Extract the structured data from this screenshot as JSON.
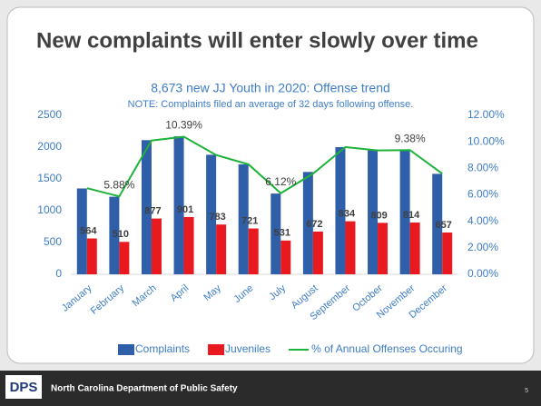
{
  "slide": {
    "title": "New complaints will enter slowly over time",
    "logo": "DPS",
    "footer": "North Carolina Department of Public Safety",
    "page": "5"
  },
  "chart_data": {
    "type": "bar_line",
    "title": "8,673 new JJ Youth in 2020: Offense trend",
    "subtitle": "NOTE: Complaints filed an average of 32 days following offense.",
    "categories": [
      "January",
      "February",
      "March",
      "April",
      "May",
      "June",
      "July",
      "August",
      "September",
      "October",
      "November",
      "December"
    ],
    "series": [
      {
        "name": "Complaints",
        "type": "bar",
        "color": "#2f5fa8",
        "values": [
          1350,
          1220,
          2110,
          2170,
          1880,
          1730,
          1270,
          1610,
          2000,
          1960,
          1960,
          1580
        ]
      },
      {
        "name": "Juveniles",
        "type": "bar",
        "color": "#e8191f",
        "data_labels": true,
        "values": [
          564,
          510,
          877,
          901,
          783,
          721,
          531,
          672,
          834,
          809,
          814,
          657
        ]
      },
      {
        "name": "% of Annual Offenses Occuring",
        "type": "line",
        "axis": "y2",
        "color": "#1db33a",
        "values": [
          6.5,
          5.88,
          10.1,
          10.39,
          9.0,
          8.3,
          6.12,
          7.6,
          9.6,
          9.35,
          9.38,
          7.6
        ],
        "value_labels": [
          null,
          "5.88%",
          null,
          "10.39%",
          null,
          null,
          "6.12%",
          null,
          null,
          null,
          "9.38%",
          null
        ]
      }
    ],
    "ylim": [
      0,
      2500
    ],
    "yticks": [
      0,
      500,
      1000,
      1500,
      2000,
      2500
    ],
    "y2lim": [
      0,
      12
    ],
    "y2ticks": [
      {
        "value": 0,
        "label": "0.00%"
      },
      {
        "value": 2,
        "label": "2.00%"
      },
      {
        "value": 4,
        "label": "4.00%"
      },
      {
        "value": 6,
        "label": "6.00%"
      },
      {
        "value": 8,
        "label": "8.00%"
      },
      {
        "value": 10,
        "label": "10.00%"
      },
      {
        "value": 12,
        "label": "12.00%"
      }
    ],
    "legend": "bottom"
  }
}
